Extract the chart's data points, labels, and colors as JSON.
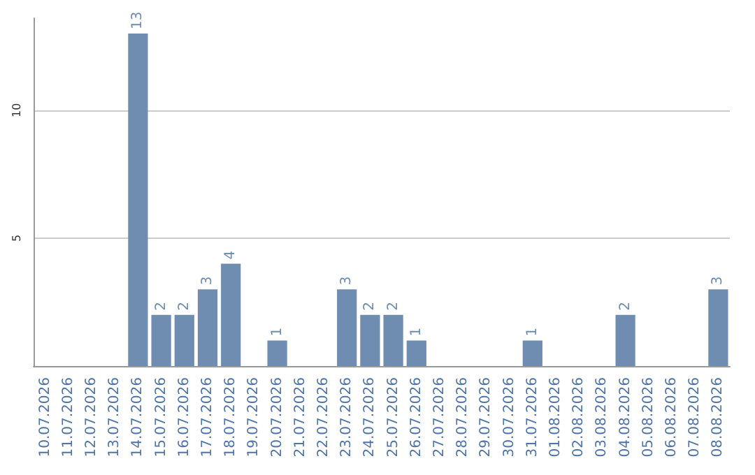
{
  "chart_data": {
    "type": "bar",
    "categories": [
      "10.07.2026",
      "11.07.2026",
      "12.07.2026",
      "13.07.2026",
      "14.07.2026",
      "15.07.2026",
      "16.07.2026",
      "17.07.2026",
      "18.07.2026",
      "19.07.2026",
      "20.07.2026",
      "21.07.2026",
      "22.07.2026",
      "23.07.2026",
      "24.07.2026",
      "25.07.2026",
      "26.07.2026",
      "27.07.2026",
      "28.07.2026",
      "29.07.2026",
      "30.07.2026",
      "31.07.2026",
      "01.08.2026",
      "02.08.2026",
      "03.08.2026",
      "04.08.2026",
      "05.08.2026",
      "06.08.2026",
      "07.08.2026",
      "08.08.2026"
    ],
    "values": [
      0,
      0,
      0,
      0,
      13,
      2,
      2,
      3,
      4,
      0,
      1,
      0,
      0,
      3,
      2,
      2,
      1,
      0,
      0,
      0,
      0,
      1,
      0,
      0,
      0,
      2,
      0,
      0,
      0,
      3
    ],
    "value_labels": [
      null,
      null,
      null,
      null,
      "13",
      "2",
      "2",
      "3",
      "4",
      null,
      "1",
      null,
      null,
      "3",
      "2",
      "2",
      "1",
      null,
      null,
      null,
      null,
      "1",
      null,
      null,
      null,
      "2",
      null,
      null,
      null,
      "3"
    ],
    "color": "#6e8db0",
    "ylim": [
      0,
      13.6
    ],
    "yticks": [
      5,
      10
    ],
    "grid": "y"
  }
}
